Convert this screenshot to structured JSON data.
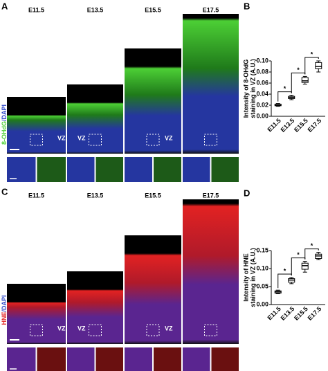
{
  "panel_labels": [
    "A",
    "B",
    "C",
    "D"
  ],
  "image_rows": [
    {
      "stages": [
        "E11.5",
        "E13.5",
        "E15.5",
        "E17.5"
      ],
      "stain": "8-OHdG",
      "counterstain": "/DAPI",
      "zone": "VZ"
    },
    {
      "stages": [
        "E11.5",
        "E13.5",
        "E15.5",
        "E17.5"
      ],
      "stain": "HNE",
      "counterstain": "/DAPI",
      "zone": "VZ"
    }
  ],
  "chart_data": [
    {
      "type": "box",
      "y_label": [
        "Intensity of 8-OHdG",
        "staining in VZ (A.U.)"
      ],
      "categories": [
        "E11.5",
        "E13.5",
        "E15.5",
        "E17.5"
      ],
      "min": [
        0.018,
        0.03,
        0.058,
        0.08
      ],
      "q1": [
        0.019,
        0.032,
        0.061,
        0.086
      ],
      "median": [
        0.02,
        0.034,
        0.064,
        0.09
      ],
      "q3": [
        0.022,
        0.036,
        0.07,
        0.097
      ],
      "max": [
        0.023,
        0.038,
        0.072,
        0.1
      ],
      "ylim": [
        0,
        0.1
      ],
      "yticks": [
        {
          "value": 0,
          "label": "0.00"
        },
        0.02,
        0.04,
        0.06,
        0.08,
        {
          "value": 0.1,
          "label": "0.10"
        }
      ],
      "annotations": [
        "*",
        "*",
        "*"
      ],
      "color": "#000000"
    },
    {
      "type": "box",
      "y_label": [
        "Intensity of HNE",
        "staining in VZ (A.U.)"
      ],
      "categories": [
        "E11.5",
        "E13.5",
        "E15.5",
        "E17.5"
      ],
      "min": [
        0.03,
        0.058,
        0.09,
        0.125
      ],
      "q1": [
        0.032,
        0.062,
        0.098,
        0.128
      ],
      "median": [
        0.035,
        0.068,
        0.108,
        0.135
      ],
      "q3": [
        0.038,
        0.072,
        0.115,
        0.14
      ],
      "max": [
        0.04,
        0.075,
        0.12,
        0.145
      ],
      "ylim": [
        0,
        0.15
      ],
      "yticks": [
        {
          "value": 0,
          "label": "0.00"
        },
        0.05,
        {
          "value": 0.1,
          "label": "0.10"
        },
        0.15
      ],
      "annotations": [
        "*",
        "*",
        "*"
      ],
      "color": "#000000"
    }
  ]
}
